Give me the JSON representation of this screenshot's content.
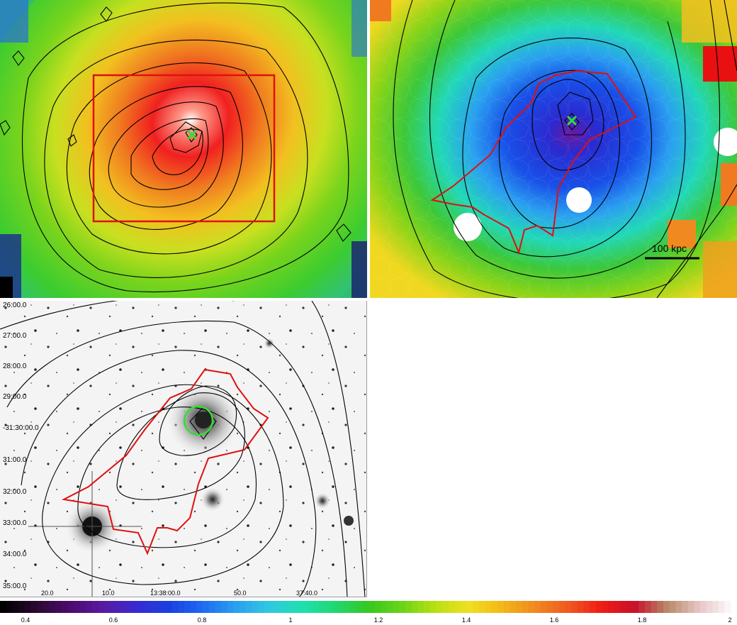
{
  "panels": {
    "xray": {
      "description": ""
    },
    "temperature": {
      "scalebar_label": "100 kpc"
    },
    "optical": {
      "dec_ticks": [
        "26:00.0",
        "27:00.0",
        "28:00.0",
        "29:00.0",
        "-31:30:00.0",
        "31:00.0",
        "32:00.0",
        "33:00.0",
        "34:00.0",
        "35:00.0"
      ],
      "ra_ticks": [
        "20.0",
        "10.0",
        "13:38:00.0",
        "50.0",
        "37:40.0"
      ]
    }
  },
  "colorbar": {
    "ticks": [
      "0.4",
      "0.6",
      "0.8",
      "1",
      "1.2",
      "1.4",
      "1.6",
      "1.8",
      "2"
    ],
    "colors": [
      "#000000",
      "#2a0a30",
      "#4b0a6e",
      "#5a1aa0",
      "#3a2ad0",
      "#1840e0",
      "#1f6bf0",
      "#2a9ff0",
      "#31c8e0",
      "#1ee0b0",
      "#20d870",
      "#35c820",
      "#6ad418",
      "#b8e012",
      "#f0e020",
      "#f4b818",
      "#ef8a20",
      "#f05a20",
      "#f01c14",
      "#c8102a",
      "#b98a6a",
      "#e8c8c8",
      "#ffffff"
    ]
  }
}
